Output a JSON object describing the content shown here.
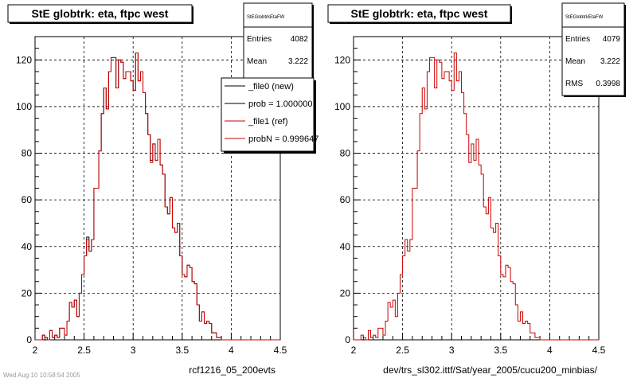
{
  "footer_note": "Wed Aug 10 10:58:54 2005",
  "chart_data": [
    {
      "type": "histogram",
      "title": "StE globtrk: eta, ftpc west",
      "xlabel": "rcf1216_05_200evts",
      "xlim": [
        2,
        4.5
      ],
      "ylim": [
        0,
        130
      ],
      "x_ticks": [
        "2",
        "2.5",
        "3",
        "3.5",
        "4",
        "4.5"
      ],
      "y_ticks": [
        "0",
        "20",
        "40",
        "60",
        "80",
        "100",
        "120"
      ],
      "grid": true,
      "stats": {
        "header": "StEGlobtrkEtaFW",
        "entries_label": "Entries",
        "entries": "4082",
        "mean_label": "Mean",
        "mean": "3.222"
      },
      "legend": [
        {
          "label": "_file0 (new)",
          "color": "#000000"
        },
        {
          "label": "prob = 1.000000",
          "color": "#000000"
        },
        {
          "label": "_file1 (ref)",
          "color": "#cc0000"
        },
        {
          "label": "probN = 0.999647",
          "color": "#cc0000"
        }
      ],
      "series": [
        {
          "name": "_file0 (new)",
          "color": "#000000",
          "bin_start": 2.0,
          "bin_width": 0.025,
          "values": [
            0,
            0,
            0,
            2,
            1,
            0,
            4,
            1,
            2,
            1,
            5,
            5,
            2,
            8,
            16,
            14,
            17,
            10,
            20,
            28,
            36,
            44,
            38,
            43,
            65,
            65,
            81,
            97,
            108,
            99,
            115,
            121,
            121,
            108,
            120,
            119,
            112,
            115,
            115,
            111,
            107,
            123,
            111,
            115,
            106,
            97,
            88,
            77,
            84,
            77,
            86,
            75,
            71,
            57,
            54,
            61,
            48,
            46,
            50,
            36,
            28,
            27,
            32,
            31,
            25,
            24,
            15,
            8,
            12,
            7,
            8,
            7,
            3,
            3,
            1,
            1,
            0,
            0,
            0,
            0,
            0,
            0,
            0,
            0,
            0,
            0,
            0,
            0,
            0,
            0,
            0,
            0,
            0,
            0,
            0,
            0,
            0,
            0,
            0,
            0
          ]
        },
        {
          "name": "_file1 (ref)",
          "color": "#cc0000",
          "bin_start": 2.0,
          "bin_width": 0.025,
          "values": [
            0,
            0,
            0,
            2,
            1,
            0,
            4,
            1,
            2,
            1,
            5,
            5,
            2,
            8,
            16,
            14,
            17,
            10,
            20,
            28,
            36,
            43,
            38,
            43,
            65,
            65,
            81,
            97,
            108,
            99,
            115,
            121,
            121,
            108,
            120,
            119,
            112,
            115,
            115,
            111,
            107,
            123,
            111,
            115,
            106,
            97,
            88,
            76,
            84,
            77,
            86,
            75,
            71,
            57,
            54,
            61,
            48,
            46,
            50,
            36,
            28,
            27,
            32,
            31,
            25,
            24,
            15,
            8,
            12,
            7,
            8,
            7,
            3,
            3,
            1,
            1,
            0,
            0,
            0,
            0,
            0,
            0,
            0,
            0,
            0,
            0,
            0,
            0,
            0,
            0,
            0,
            0,
            0,
            0,
            0,
            0,
            0,
            0,
            0,
            0
          ]
        }
      ]
    },
    {
      "type": "histogram",
      "title": "StE globtrk: eta, ftpc west",
      "xlabel": "dev/trs_sl302.ittf/Sat/year_2005/cucu200_minbias/",
      "xlim": [
        2,
        4.5
      ],
      "ylim": [
        0,
        130
      ],
      "x_ticks": [
        "2",
        "2.5",
        "3",
        "3.5",
        "4",
        "4.5"
      ],
      "y_ticks": [
        "0",
        "20",
        "40",
        "60",
        "80",
        "100",
        "120"
      ],
      "grid": true,
      "stats": {
        "header": "StEGlobtrkEtaFW",
        "entries_label": "Entries",
        "entries": "4079",
        "mean_label": "Mean",
        "mean": "3.222",
        "rms_label": "RMS",
        "rms": "0.3998"
      },
      "legend": [],
      "series": [
        {
          "name": "",
          "color": "#cc0000",
          "bin_start": 2.0,
          "bin_width": 0.025,
          "values": [
            0,
            0,
            0,
            2,
            1,
            0,
            4,
            1,
            2,
            1,
            5,
            5,
            2,
            8,
            16,
            14,
            17,
            10,
            20,
            28,
            36,
            43,
            38,
            43,
            65,
            65,
            81,
            97,
            108,
            99,
            115,
            121,
            121,
            108,
            120,
            119,
            112,
            115,
            115,
            111,
            107,
            123,
            111,
            115,
            106,
            97,
            88,
            76,
            84,
            77,
            86,
            75,
            71,
            57,
            54,
            61,
            48,
            46,
            50,
            36,
            28,
            27,
            32,
            31,
            25,
            24,
            15,
            8,
            12,
            7,
            8,
            7,
            3,
            3,
            1,
            1,
            0,
            0,
            0,
            0,
            0,
            0,
            0,
            0,
            0,
            0,
            0,
            0,
            0,
            0,
            0,
            0,
            0,
            0,
            0,
            0,
            0,
            0,
            0,
            0
          ]
        }
      ]
    }
  ]
}
